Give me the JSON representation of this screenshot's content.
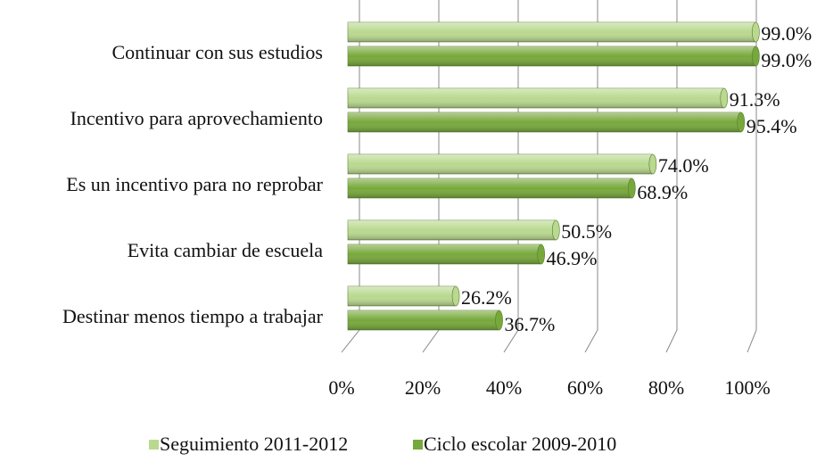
{
  "chart_data": {
    "type": "bar",
    "orientation": "horizontal",
    "categories": [
      "Continuar con sus estudios",
      "Incentivo para aprovechamiento",
      "Es un incentivo para no reprobar",
      "Evita cambiar de escuela",
      "Destinar menos tiempo a trabajar"
    ],
    "series": [
      {
        "name": "Seguimiento 2011-2012",
        "color": "#b9d98f",
        "values": [
          99.0,
          91.3,
          74.0,
          50.5,
          26.2
        ],
        "value_labels": [
          "99.0%",
          "91.3%",
          "74.0%",
          "50.5%",
          "26.2%"
        ]
      },
      {
        "name": "Ciclo escolar 2009-2010",
        "color": "#77a83b",
        "values": [
          99.0,
          95.4,
          68.9,
          46.9,
          36.7
        ],
        "value_labels": [
          "99.0%",
          "95.4%",
          "68.9%",
          "46.9%",
          "36.7%"
        ]
      }
    ],
    "xlim": [
      0,
      100
    ],
    "xticks": [
      {
        "value": 0,
        "label": "0%"
      },
      {
        "value": 20,
        "label": "20%"
      },
      {
        "value": 40,
        "label": "40%"
      },
      {
        "value": 60,
        "label": "60%"
      },
      {
        "value": 80,
        "label": "80%"
      },
      {
        "value": 100,
        "label": "100%"
      }
    ],
    "grid": true,
    "legend": "bottom"
  }
}
